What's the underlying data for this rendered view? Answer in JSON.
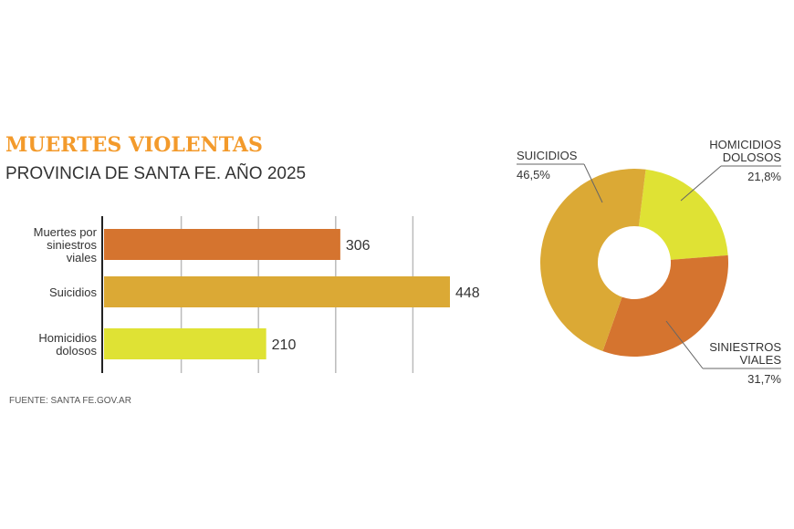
{
  "chart_data": [
    {
      "type": "bar",
      "orientation": "horizontal",
      "title": "MUERTES VIOLENTAS",
      "subtitle": "PROVINCIA DE SANTA FE. AÑO 2025",
      "categories": [
        [
          "Muertes por",
          "siniestros",
          "viales"
        ],
        [
          "Suicidios"
        ],
        [
          "Homicidios",
          "dolosos"
        ]
      ],
      "values": [
        306,
        448,
        210
      ],
      "value_labels": [
        "306",
        "448",
        "210"
      ],
      "colors": [
        "#d5742f",
        "#dba935",
        "#dfe234"
      ],
      "xlim": [
        0,
        450
      ],
      "gridlines": [
        100,
        200,
        300,
        400
      ],
      "grid": true
    },
    {
      "type": "pie",
      "donut": true,
      "slices": [
        {
          "label": [
            "HOMICIDIOS",
            "DOLOSOS"
          ],
          "value": 21.8,
          "value_label": "21,8%",
          "color": "#dfe234"
        },
        {
          "label": [
            "SINIESTROS",
            "VIALES"
          ],
          "value": 31.7,
          "value_label": "31,7%",
          "color": "#d5742f"
        },
        {
          "label": [
            "SUICIDIOS"
          ],
          "value": 46.5,
          "value_label": "46,5%",
          "color": "#dba935"
        }
      ]
    }
  ],
  "source": "FUENTE:  SANTA FE.GOV.AR"
}
